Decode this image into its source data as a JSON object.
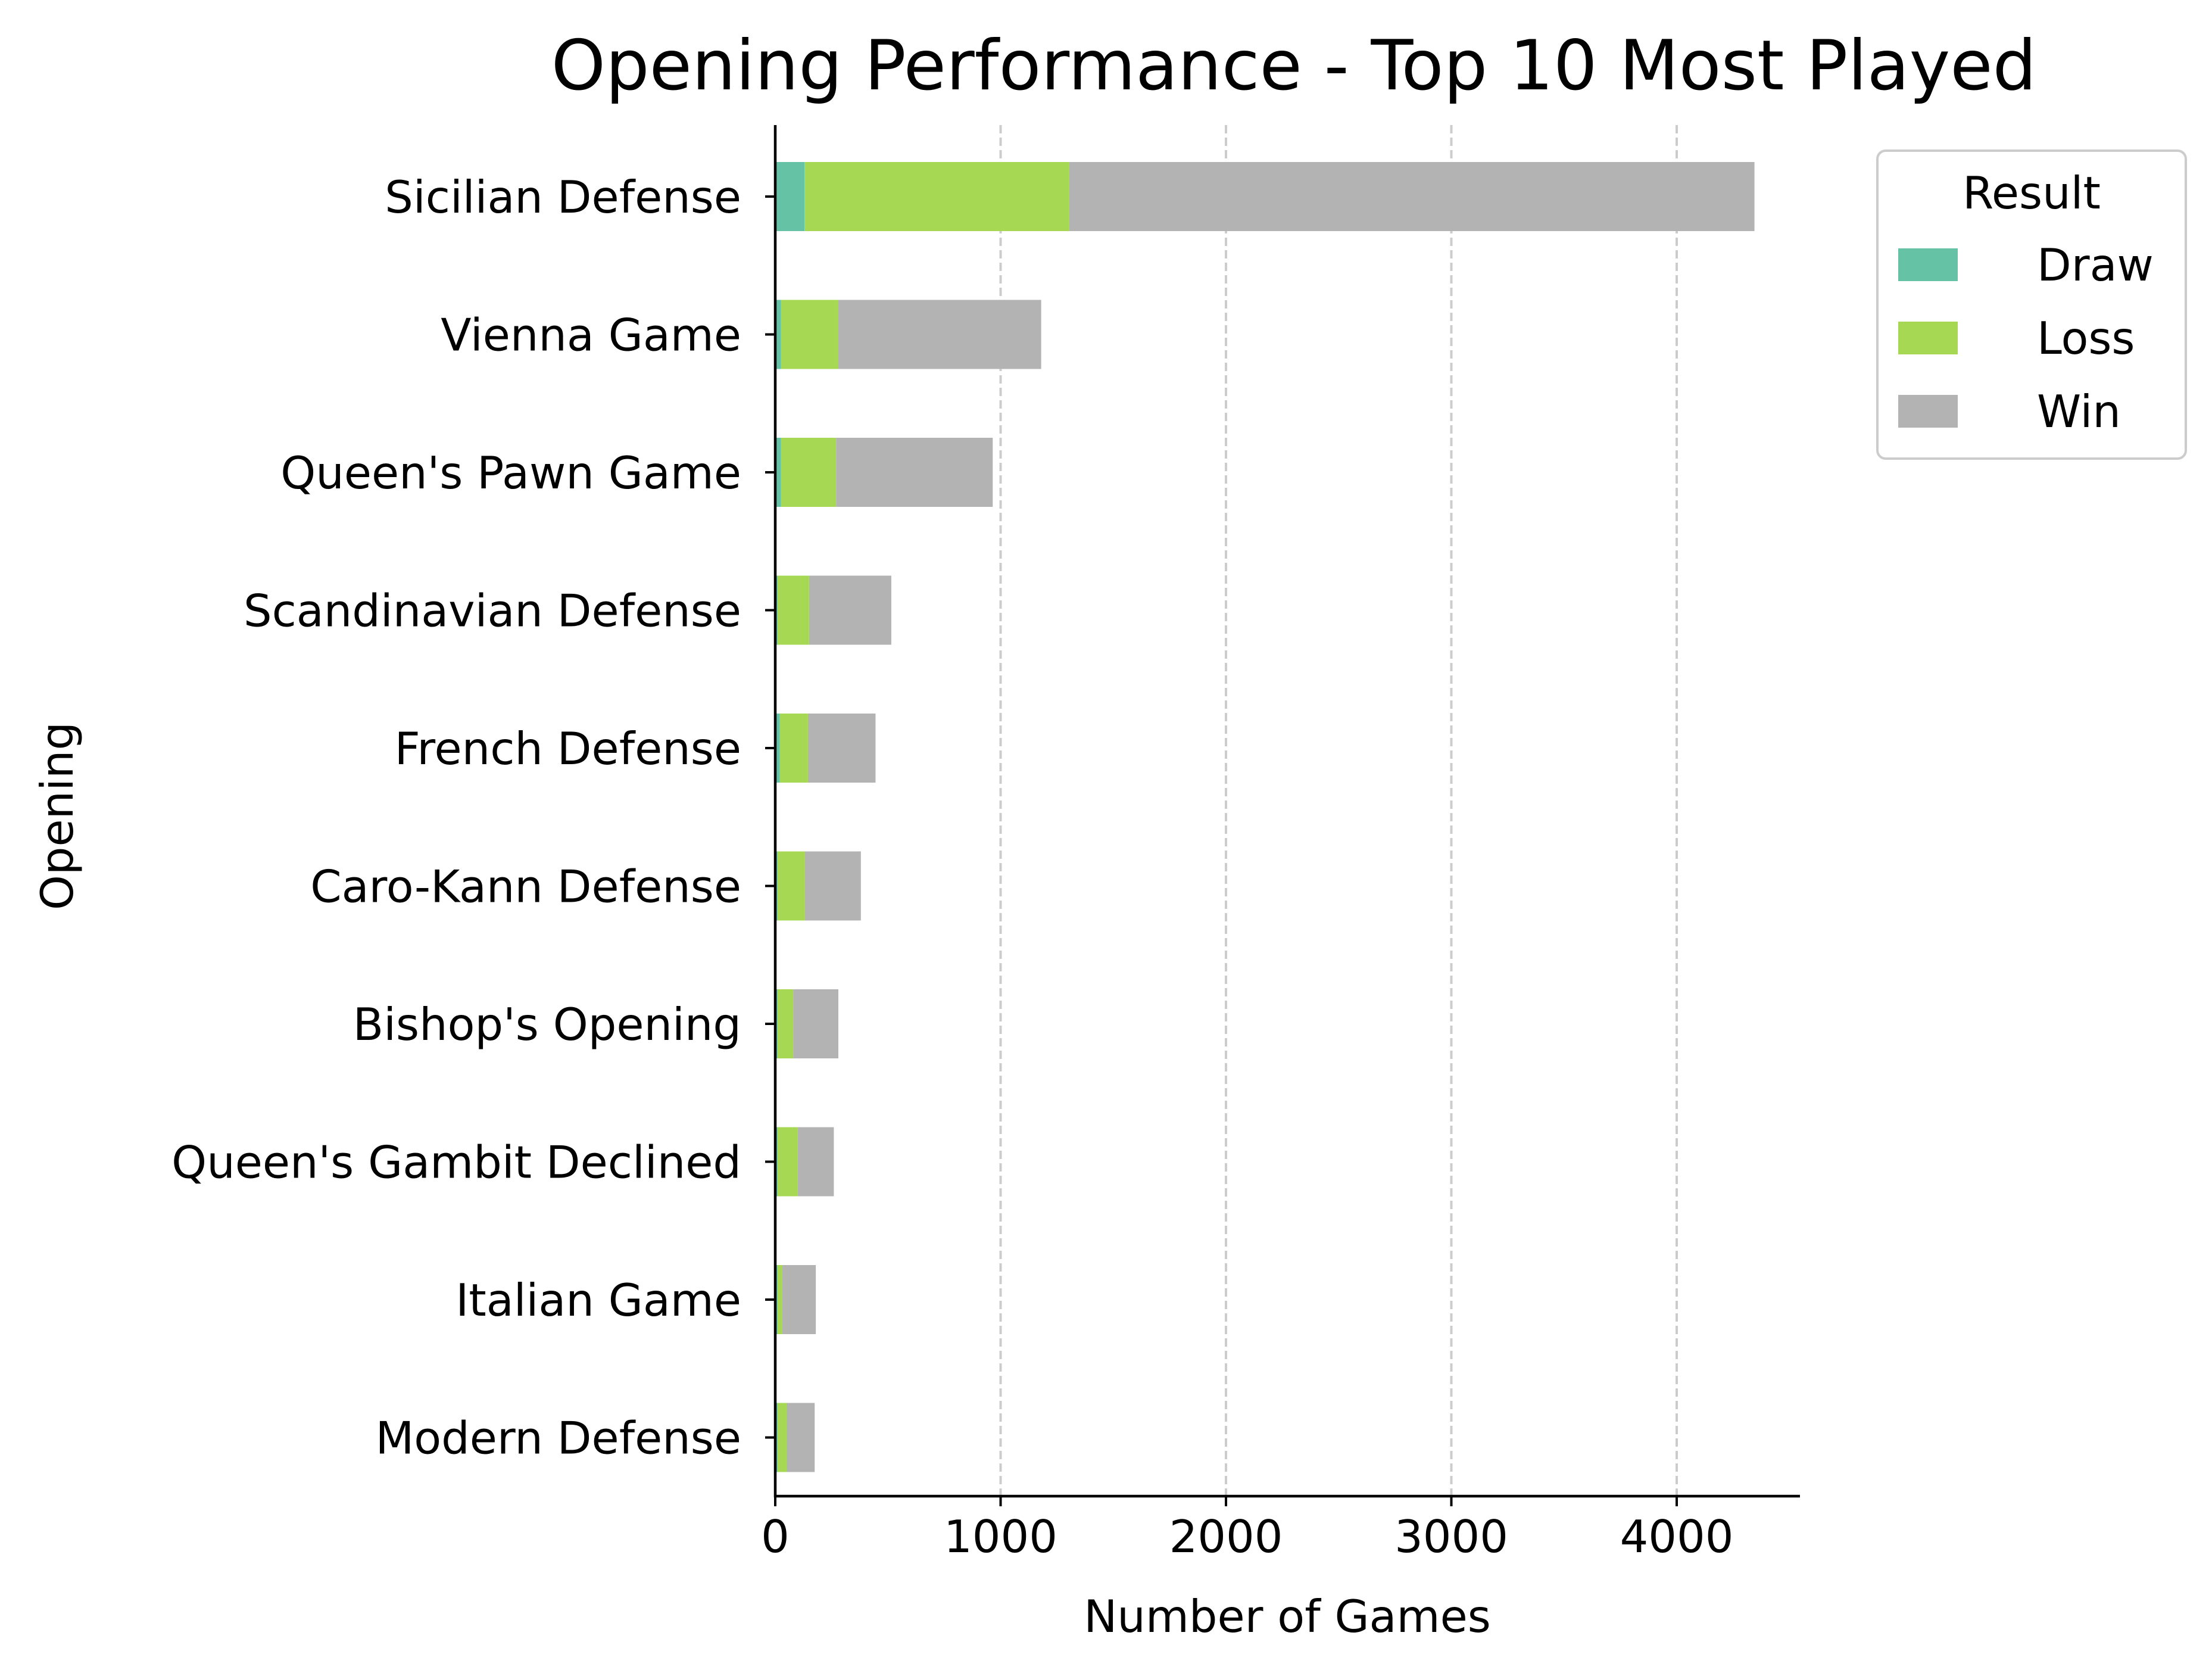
{
  "chart_data": {
    "type": "bar",
    "orientation": "horizontal",
    "stacked": true,
    "title": "Opening Performance - Top 10 Most Played",
    "xlabel": "Number of Games",
    "ylabel": "Opening",
    "xlim": [
      0,
      4560
    ],
    "xticks": [
      0,
      1000,
      2000,
      3000,
      4000
    ],
    "grid": "x, dashed",
    "legend": {
      "title": "Result",
      "placement": "upper right, outside plot"
    },
    "categories": [
      "Sicilian Defense",
      "Vienna Game",
      "Queen's Pawn Game",
      "Scandinavian Defense",
      "French Defense",
      "Caro-Kann Defense",
      "Bishop's Opening",
      "Queen's Gambit Declined",
      "Italian Game",
      "Modern Defense"
    ],
    "series": [
      {
        "name": "Draw",
        "color": "#66c2a5",
        "values": [
          130,
          25,
          25,
          10,
          20,
          10,
          10,
          10,
          10,
          10
        ]
      },
      {
        "name": "Loss",
        "color": "#a6d854",
        "values": [
          1175,
          255,
          245,
          140,
          125,
          120,
          70,
          90,
          20,
          40
        ]
      },
      {
        "name": "Win",
        "color": "#b3b3b3",
        "values": [
          3040,
          900,
          695,
          365,
          300,
          250,
          200,
          160,
          150,
          125
        ]
      }
    ]
  }
}
